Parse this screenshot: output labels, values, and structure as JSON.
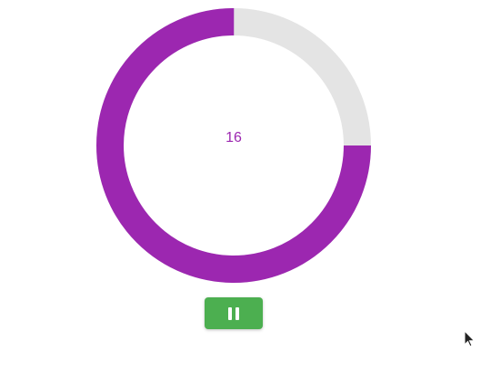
{
  "timer": {
    "value": "16",
    "progress_fraction": 0.75,
    "progress_color": "#9c27b0",
    "track_color": "#e4e4e4"
  },
  "controls": {
    "pause_icon": "pause-icon",
    "pause_button_color": "#4caf50"
  },
  "cursor": {
    "icon": "mouse-pointer-icon"
  }
}
